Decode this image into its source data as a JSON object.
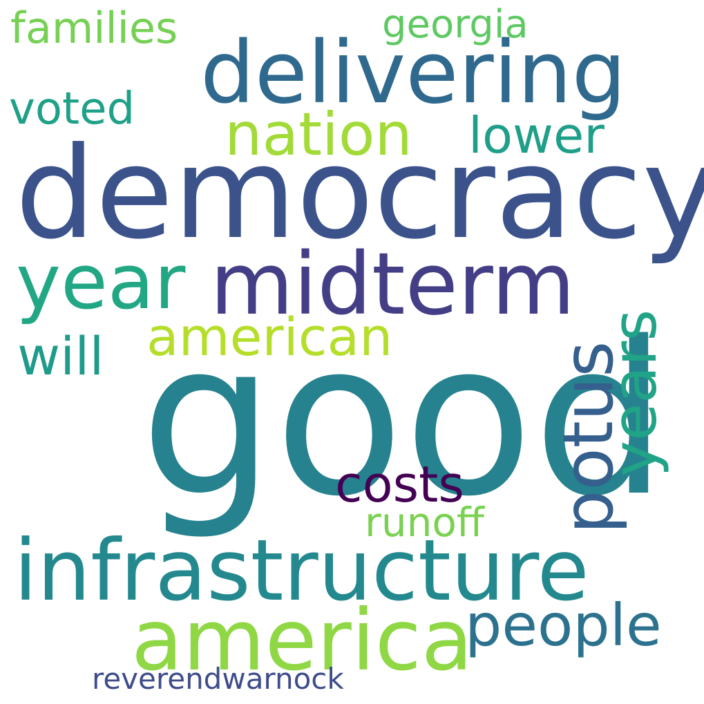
{
  "words": {
    "democracy": {
      "text": "democracy",
      "color": "#3b528b"
    },
    "good": {
      "text": "good",
      "color": "#26828e"
    },
    "delivering": {
      "text": "delivering",
      "color": "#30698e"
    },
    "midterm": {
      "text": "midterm",
      "color": "#433e85"
    },
    "infrastructure": {
      "text": "infrastructure",
      "color": "#23898e"
    },
    "america": {
      "text": "america",
      "color": "#8fd744"
    },
    "potus": {
      "text": "potus",
      "color": "#355f8d"
    },
    "year": {
      "text": "year",
      "color": "#22a785"
    },
    "years": {
      "text": "years",
      "color": "#20a386"
    },
    "nation": {
      "text": "nation",
      "color": "#a2da37"
    },
    "american": {
      "text": "american",
      "color": "#b5de2b"
    },
    "people": {
      "text": "people",
      "color": "#2c728e"
    },
    "lower": {
      "text": "lower",
      "color": "#1f9e89"
    },
    "costs": {
      "text": "costs",
      "color": "#440154"
    },
    "families": {
      "text": "families",
      "color": "#75d054"
    },
    "georgia": {
      "text": "georgia",
      "color": "#5ec962"
    },
    "voted": {
      "text": "voted",
      "color": "#1fa187"
    },
    "will": {
      "text": "will",
      "color": "#1e9b8a"
    },
    "runoff": {
      "text": "runoff",
      "color": "#7ad151"
    },
    "reverendwarnock": {
      "text": "reverendwarnock",
      "color": "#3e4c8a"
    }
  }
}
